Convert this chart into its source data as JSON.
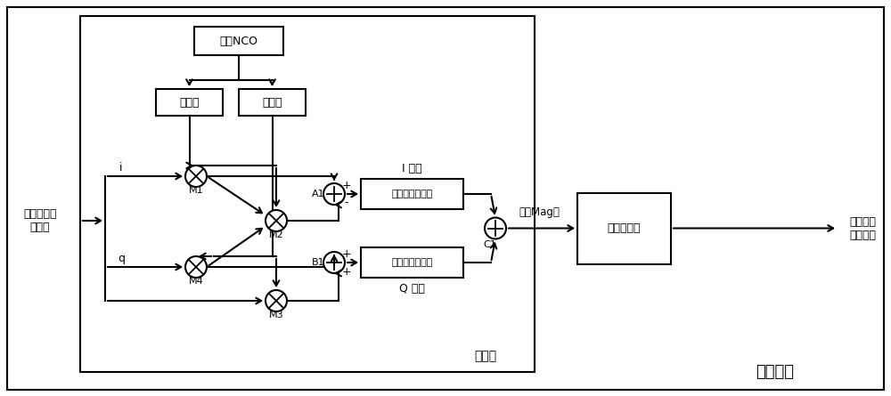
{
  "bg_color": "#ffffff",
  "scanner_label": "扫频器",
  "unit_label": "扫频单元",
  "nco_box_label": "本地NCO",
  "cos_box_label": "余弦表",
  "sin_box_label": "正弦表",
  "int1_box_label": "第一相干积分器",
  "int2_box_label": "第二相干积分器",
  "freq_box_label": "频率估计器",
  "input_label": "含噪连续波\n复信号",
  "output_label": "连续波信\n号的频率",
  "i_label": "i",
  "q_label": "q",
  "I_branch_label": "I 支路",
  "Q_branch_label": "Q 支路",
  "mag_label": "第一Mag值",
  "A1_label": "A1",
  "B1_label": "B1",
  "C1_label": "C1",
  "M1_label": "M1",
  "M2_label": "M2",
  "M3_label": "M3",
  "M4_label": "M4"
}
